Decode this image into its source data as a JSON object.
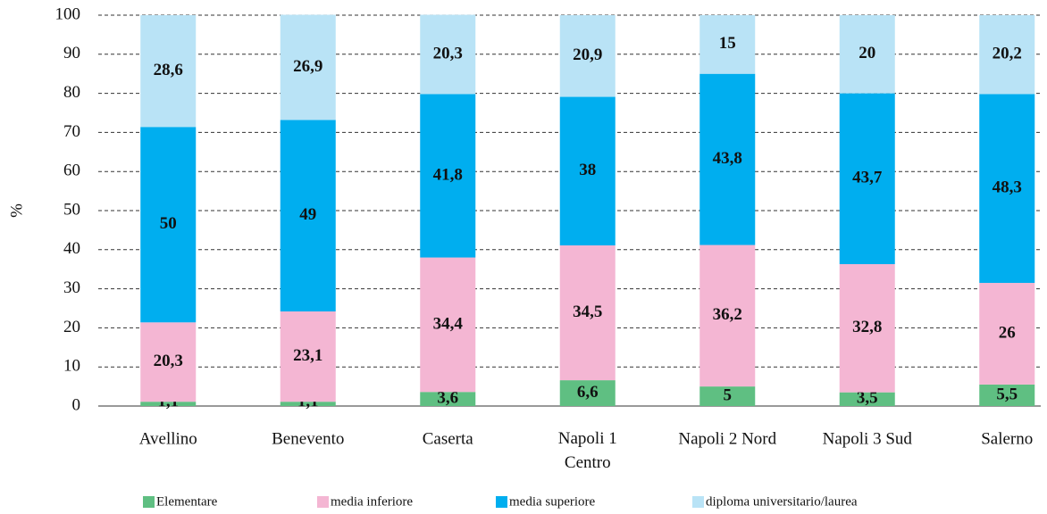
{
  "chart_data": {
    "type": "stacked_bar",
    "y_label": "%",
    "categories": [
      "Avellino",
      "Benevento",
      "Caserta",
      "Napoli 1 Centro",
      "Napoli 2 Nord",
      "Napoli 3 Sud",
      "Salerno"
    ],
    "series": [
      {
        "name": "Elementare",
        "color": "#5fbf82",
        "values": [
          1.1,
          1.1,
          3.6,
          6.6,
          5,
          3.5,
          5.5
        ],
        "value_labels": [
          "1,1",
          "1,1",
          "3,6",
          "6,6",
          "5",
          "3,5",
          "5,5"
        ]
      },
      {
        "name": "media inferiore",
        "color": "#f4b6d3",
        "values": [
          20.3,
          23.1,
          34.4,
          34.5,
          36.2,
          32.8,
          26
        ],
        "value_labels": [
          "20,3",
          "23,1",
          "34,4",
          "34,5",
          "36,2",
          "32,8",
          "26"
        ]
      },
      {
        "name": "media superiore",
        "color": "#00aeef",
        "values": [
          50,
          49,
          41.8,
          38,
          43.8,
          43.7,
          48.3
        ],
        "value_labels": [
          "50",
          "49",
          "41,8",
          "38",
          "43,8",
          "43,7",
          "48,3"
        ]
      },
      {
        "name": "diploma universitario/laurea",
        "color": "#b9e3f6",
        "values": [
          28.6,
          26.9,
          20.3,
          20.9,
          15,
          20,
          20.2
        ],
        "value_labels": [
          "28,6",
          "26,9",
          "20,3",
          "20,9",
          "15",
          "20",
          "20,2"
        ]
      }
    ],
    "ylim": [
      0,
      100
    ],
    "yticks": [
      0,
      10,
      20,
      30,
      40,
      50,
      60,
      70,
      80,
      90,
      100
    ],
    "grid": true,
    "legend": "bottom"
  }
}
